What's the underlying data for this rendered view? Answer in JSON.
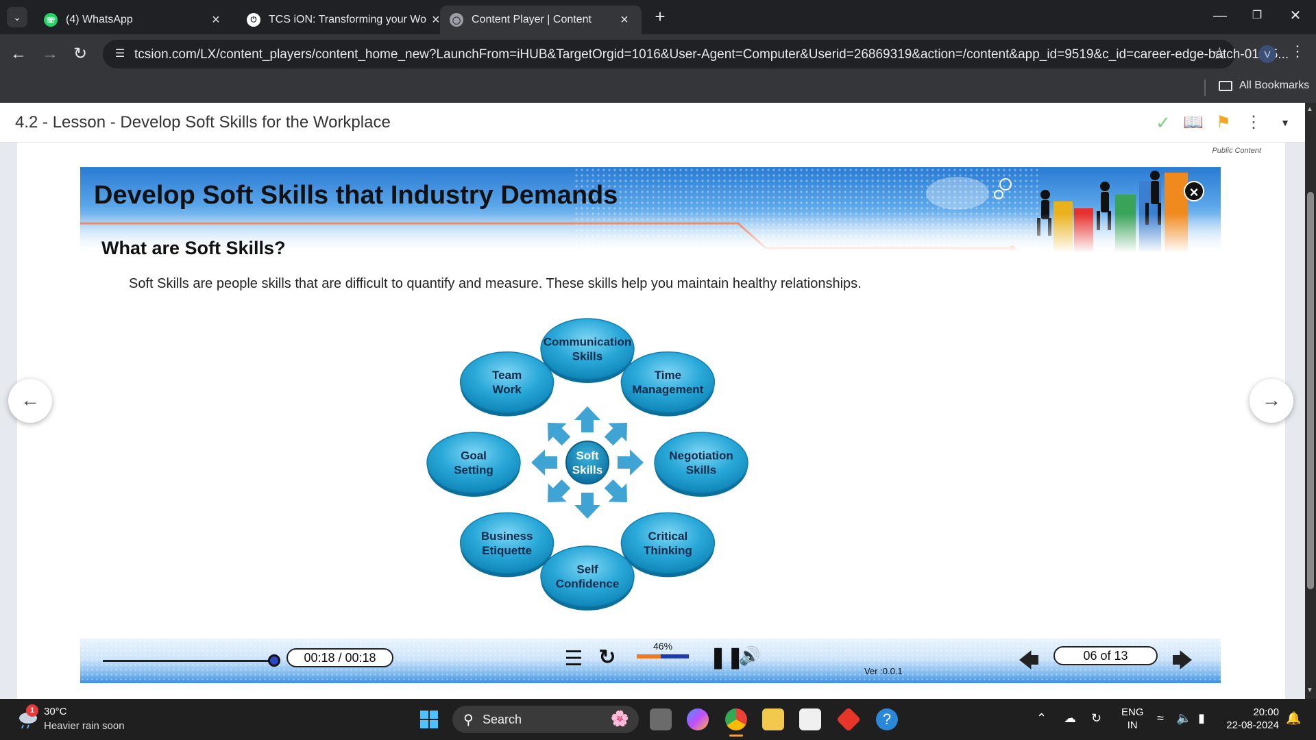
{
  "browser": {
    "tabs": [
      {
        "title": "(4) WhatsApp",
        "icon": "whatsapp-icon",
        "active": false
      },
      {
        "title": "TCS iON: Transforming your Wo",
        "icon": "tcs-ion-icon",
        "active": false
      },
      {
        "title": "Content Player | Content",
        "icon": "globe-icon",
        "active": true
      }
    ],
    "url": "tcsion.com/LX/content_players/content_home_new?LaunchFrom=iHUB&TargetOrgid=1016&User-Agent=Computer&Userid=26869319&action=/content&app_id=9519&c_id=career-edge-batch-01-65...",
    "profile_initial": "V",
    "bookmarks_label": "All Bookmarks"
  },
  "lesson": {
    "title": "4.2 - Lesson - Develop Soft Skills for the Workplace",
    "public_label": "Public Content"
  },
  "slide": {
    "banner_title": "Develop Soft Skills that Industry Demands",
    "heading": "What are Soft Skills?",
    "intro": "Soft Skills are people skills that are difficult to quantify and measure. These skills help you maintain healthy relationships.",
    "center": [
      "Soft",
      "Skills"
    ],
    "skills": [
      [
        "Communication",
        "Skills"
      ],
      [
        "Time",
        "Management"
      ],
      [
        "Negotiation",
        "Skills"
      ],
      [
        "Critical",
        "Thinking"
      ],
      [
        "Self",
        "Confidence"
      ],
      [
        "Business",
        "Etiquette"
      ],
      [
        "Goal",
        "Setting"
      ],
      [
        "Team",
        "Work"
      ]
    ],
    "colors": {
      "bubble": "#29a8d8",
      "bubble_dark": "#0b6f9c",
      "arrow": "#3fa3d4"
    }
  },
  "player": {
    "time": "00:18 / 00:18",
    "progress": 1.0,
    "volume_label": "46%",
    "volume": 0.46,
    "version": "Ver :0.0.1",
    "page": "06 of 13"
  },
  "taskbar": {
    "temperature": "30°C",
    "weather": "Heavier rain soon",
    "notification_count": "1",
    "search_placeholder": "Search",
    "lang_1": "ENG",
    "lang_2": "IN",
    "time": "20:00",
    "date": "22-08-2024"
  }
}
